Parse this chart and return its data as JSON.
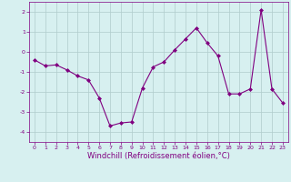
{
  "x": [
    0,
    1,
    2,
    3,
    4,
    5,
    6,
    7,
    8,
    9,
    10,
    11,
    12,
    13,
    14,
    15,
    16,
    17,
    18,
    19,
    20,
    21,
    22,
    23
  ],
  "y": [
    -0.4,
    -0.7,
    -0.65,
    -0.9,
    -1.2,
    -1.4,
    -2.3,
    -3.7,
    -3.55,
    -3.5,
    -1.8,
    -0.75,
    -0.5,
    0.1,
    0.65,
    1.2,
    0.45,
    -0.2,
    -2.1,
    -2.1,
    -1.85,
    2.1,
    -1.85,
    -2.55
  ],
  "line_color": "#800080",
  "marker": "D",
  "marker_size": 2,
  "bg_color": "#d7f0f0",
  "grid_color": "#b0cccc",
  "xlabel": "Windchill (Refroidissement éolien,°C)",
  "xlim": [
    -0.5,
    23.5
  ],
  "ylim": [
    -4.5,
    2.5
  ],
  "yticks": [
    -4,
    -3,
    -2,
    -1,
    0,
    1,
    2
  ],
  "xticks": [
    0,
    1,
    2,
    3,
    4,
    5,
    6,
    7,
    8,
    9,
    10,
    11,
    12,
    13,
    14,
    15,
    16,
    17,
    18,
    19,
    20,
    21,
    22,
    23
  ],
  "tick_label_color": "#800080",
  "tick_label_size": 4.5,
  "xlabel_size": 6.0,
  "linewidth": 0.8,
  "spine_color": "#800080"
}
